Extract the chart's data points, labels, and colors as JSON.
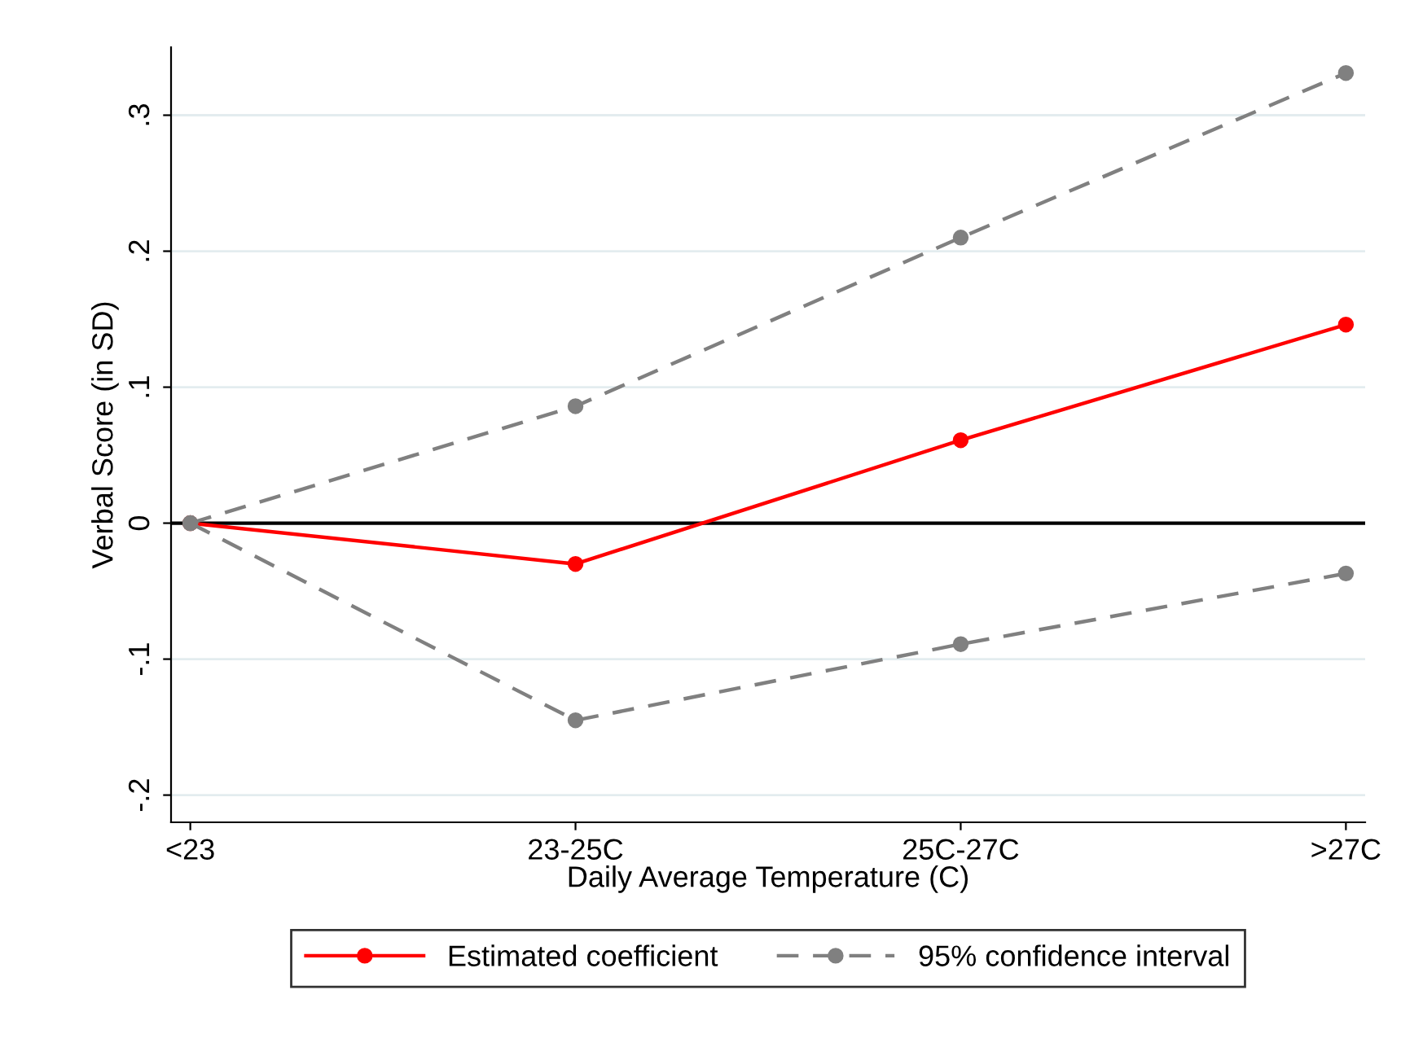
{
  "chart_data": {
    "type": "line",
    "xlabel": "Daily Average Temperature (C)",
    "ylabel": "Verbal Score (in SD)",
    "categories": [
      "<23",
      "23-25C",
      "25C-27C",
      ">27C"
    ],
    "series": [
      {
        "name": "Estimated coefficient",
        "color": "#ff0000",
        "line_style": "solid",
        "values": [
          0,
          -0.03,
          0.061,
          0.146
        ]
      },
      {
        "name": "95% confidence interval",
        "color": "#808080",
        "line_style": "dashed",
        "values": [
          0,
          0.086,
          0.21,
          0.331
        ]
      },
      {
        "color": "#808080",
        "line_style": "dashed",
        "values": [
          0,
          -0.145,
          -0.089,
          -0.037
        ]
      }
    ],
    "ylim": [
      -0.22,
      0.35
    ],
    "yticks": [
      {
        "value": -0.2,
        "label": "-.2"
      },
      {
        "value": -0.1,
        "label": "-.1"
      },
      0,
      {
        "value": 0.1,
        "label": ".1"
      },
      {
        "value": 0.2,
        "label": ".2"
      },
      {
        "value": 0.3,
        "label": ".3"
      }
    ],
    "ref_lines": [
      {
        "axis": "y",
        "value": 0,
        "color": "#000000"
      }
    ],
    "grid": "y",
    "legend": "bottom",
    "marker": "circle"
  }
}
